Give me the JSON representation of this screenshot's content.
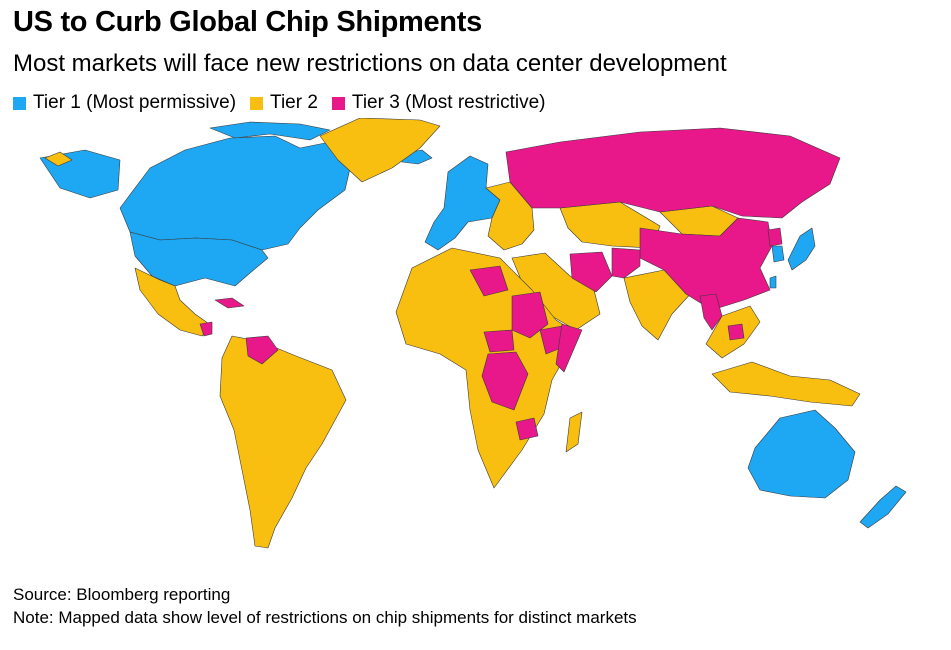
{
  "title": "US to Curb Global Chip Shipments",
  "subtitle": "Most markets will face new restrictions on data center development",
  "legend": [
    {
      "label": "Tier 1 (Most permissive)",
      "color": "#1ea7f2"
    },
    {
      "label": "Tier 2",
      "color": "#f8be10"
    },
    {
      "label": "Tier 3 (Most restrictive)",
      "color": "#e8178a"
    }
  ],
  "colors": {
    "tier1": "#1ea7f2",
    "tier2": "#f8be10",
    "tier3": "#e8178a",
    "border": "#3a3a3a"
  },
  "regions": [
    {
      "name": "Canada",
      "tier": 1
    },
    {
      "name": "United States",
      "tier": 1
    },
    {
      "name": "Greenland",
      "tier": 2
    },
    {
      "name": "Mexico",
      "tier": 2
    },
    {
      "name": "Cuba",
      "tier": 3
    },
    {
      "name": "Nicaragua",
      "tier": 3
    },
    {
      "name": "Venezuela",
      "tier": 3
    },
    {
      "name": "South America",
      "tier": 2
    },
    {
      "name": "Western Europe",
      "tier": 1
    },
    {
      "name": "Eastern Europe",
      "tier": 2
    },
    {
      "name": "Russia",
      "tier": 3
    },
    {
      "name": "China",
      "tier": 3
    },
    {
      "name": "Iran",
      "tier": 3
    },
    {
      "name": "Afghanistan",
      "tier": 3
    },
    {
      "name": "Central Asia",
      "tier": 2
    },
    {
      "name": "Mongolia",
      "tier": 2
    },
    {
      "name": "Middle East",
      "tier": 2
    },
    {
      "name": "India",
      "tier": 2
    },
    {
      "name": "Myanmar",
      "tier": 3
    },
    {
      "name": "Cambodia",
      "tier": 3
    },
    {
      "name": "Southeast Asia",
      "tier": 2
    },
    {
      "name": "Japan",
      "tier": 1
    },
    {
      "name": "South Korea",
      "tier": 1
    },
    {
      "name": "North Korea",
      "tier": 3
    },
    {
      "name": "Taiwan",
      "tier": 1
    },
    {
      "name": "Africa",
      "tier": 2
    },
    {
      "name": "Libya",
      "tier": 3
    },
    {
      "name": "Sudan",
      "tier": 3
    },
    {
      "name": "Central African Republic",
      "tier": 3
    },
    {
      "name": "DR Congo",
      "tier": 3
    },
    {
      "name": "Ethiopia",
      "tier": 3
    },
    {
      "name": "Somalia",
      "tier": 3
    },
    {
      "name": "Zimbabwe",
      "tier": 3
    },
    {
      "name": "Australia",
      "tier": 1
    },
    {
      "name": "New Zealand",
      "tier": 1
    }
  ],
  "source": "Source: Bloomberg reporting",
  "note": "Note: Mapped data show level of restrictions on chip shipments for distinct markets"
}
